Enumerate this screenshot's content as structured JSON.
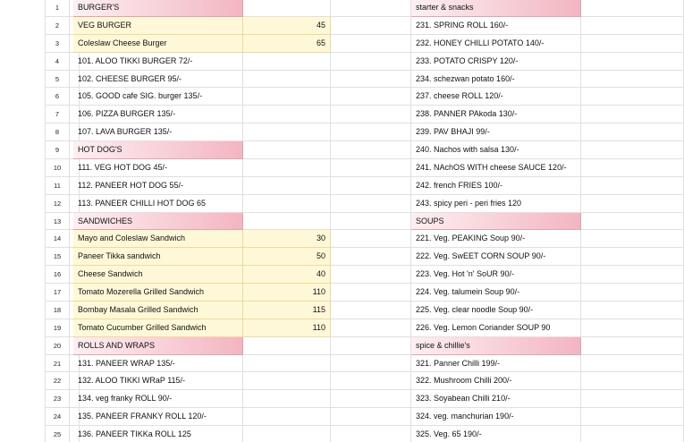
{
  "rows": [
    {
      "n": 1,
      "a": "BURGER'S",
      "d": "starter & snacks"
    },
    {
      "n": 2,
      "a": "VEG BURGER",
      "b": 45,
      "d": "231. SPRING ROLL 160/-"
    },
    {
      "n": 3,
      "a": "Coleslaw Cheese Burger",
      "b": 65,
      "d": "232. HONEY CHILLI POTATO 140/-"
    },
    {
      "n": 4,
      "a": "101. ALOO TIKKI BURGER 72/-",
      "d": "233. POTATO CRISPY 120/-"
    },
    {
      "n": 5,
      "a": "102. CHEESE BURGER 95/-",
      "d": "234. schezwan potato 160/-"
    },
    {
      "n": 6,
      "a": "105. GOOD cafe SIG. burger 135/-",
      "d": "237. cheese ROLL 120/-"
    },
    {
      "n": 7,
      "a": "106. PIZZA BURGER 135/-",
      "d": "238. PANNER PAkoda 130/-"
    },
    {
      "n": 8,
      "a": "107. LAVA BURGER 135/-",
      "d": "239. PAV BHAJI 99/-"
    },
    {
      "n": 9,
      "a": "HOT DOG'S",
      "d": "240. Nachos with salsa 130/-"
    },
    {
      "n": 10,
      "a": "111. VEG HOT DOG 45/-",
      "d": "241. NAchOS WITH cheese SAUCE 120/-"
    },
    {
      "n": 11,
      "a": "112. PANEER HOT DOG 55/-",
      "d": "242. french FRIES 100/-"
    },
    {
      "n": 12,
      "a": "113. PANEER CHILLI HOT DOG 65",
      "d": "243. spicy peri - peri fries 120"
    },
    {
      "n": 13,
      "a": "SANDWICHES",
      "d": "SOUPS"
    },
    {
      "n": 14,
      "a": "Mayo and Coleslaw Sandwich",
      "b": 30,
      "d": "221. Veg. PEAKING Soup 90/-"
    },
    {
      "n": 15,
      "a": "Paneer Tikka sandwich",
      "b": 50,
      "d": "222. Veg. SwEET CORN SOUP 90/-"
    },
    {
      "n": 16,
      "a": "Cheese Sandwich",
      "b": 40,
      "d": "223. Veg. Hot 'n' SoUR 90/-"
    },
    {
      "n": 17,
      "a": "Tomato Mozerella Grilled Sandwich",
      "b": 110,
      "d": "224. Veg. talumein Soup 90/-"
    },
    {
      "n": 18,
      "a": "Bombay Masala Grilled Sandwich",
      "b": 115,
      "d": "225. Veg. clear noodle Soup 90/-"
    },
    {
      "n": 19,
      "a": "Tomato Cucumber Grilled Sandwich",
      "b": 110,
      "d": "226. Veg. Lemon Coriander SOUP 90"
    },
    {
      "n": 20,
      "a": "ROLLS AND WRAPS",
      "d": "spice & chillie's"
    },
    {
      "n": 21,
      "a": "131. PANEER WRAP 135/-",
      "d": "321. Panner Chilli 199/-"
    },
    {
      "n": 22,
      "a": "132. ALOO TIKKI WRaP 115/-",
      "d": "322. Mushroom Chilli 200/-"
    },
    {
      "n": 23,
      "a": "134. veg franky ROLL 90/-",
      "d": "323. Soyabean Chilli 210/-"
    },
    {
      "n": 24,
      "a": "135. PANEER FRANKY ROLL 120/-",
      "d": "324. veg. manchurian 190/-"
    },
    {
      "n": 25,
      "a": "136. PANEER TIKKa ROLL 125",
      "d": "325. Veg. 65 190/-"
    }
  ]
}
